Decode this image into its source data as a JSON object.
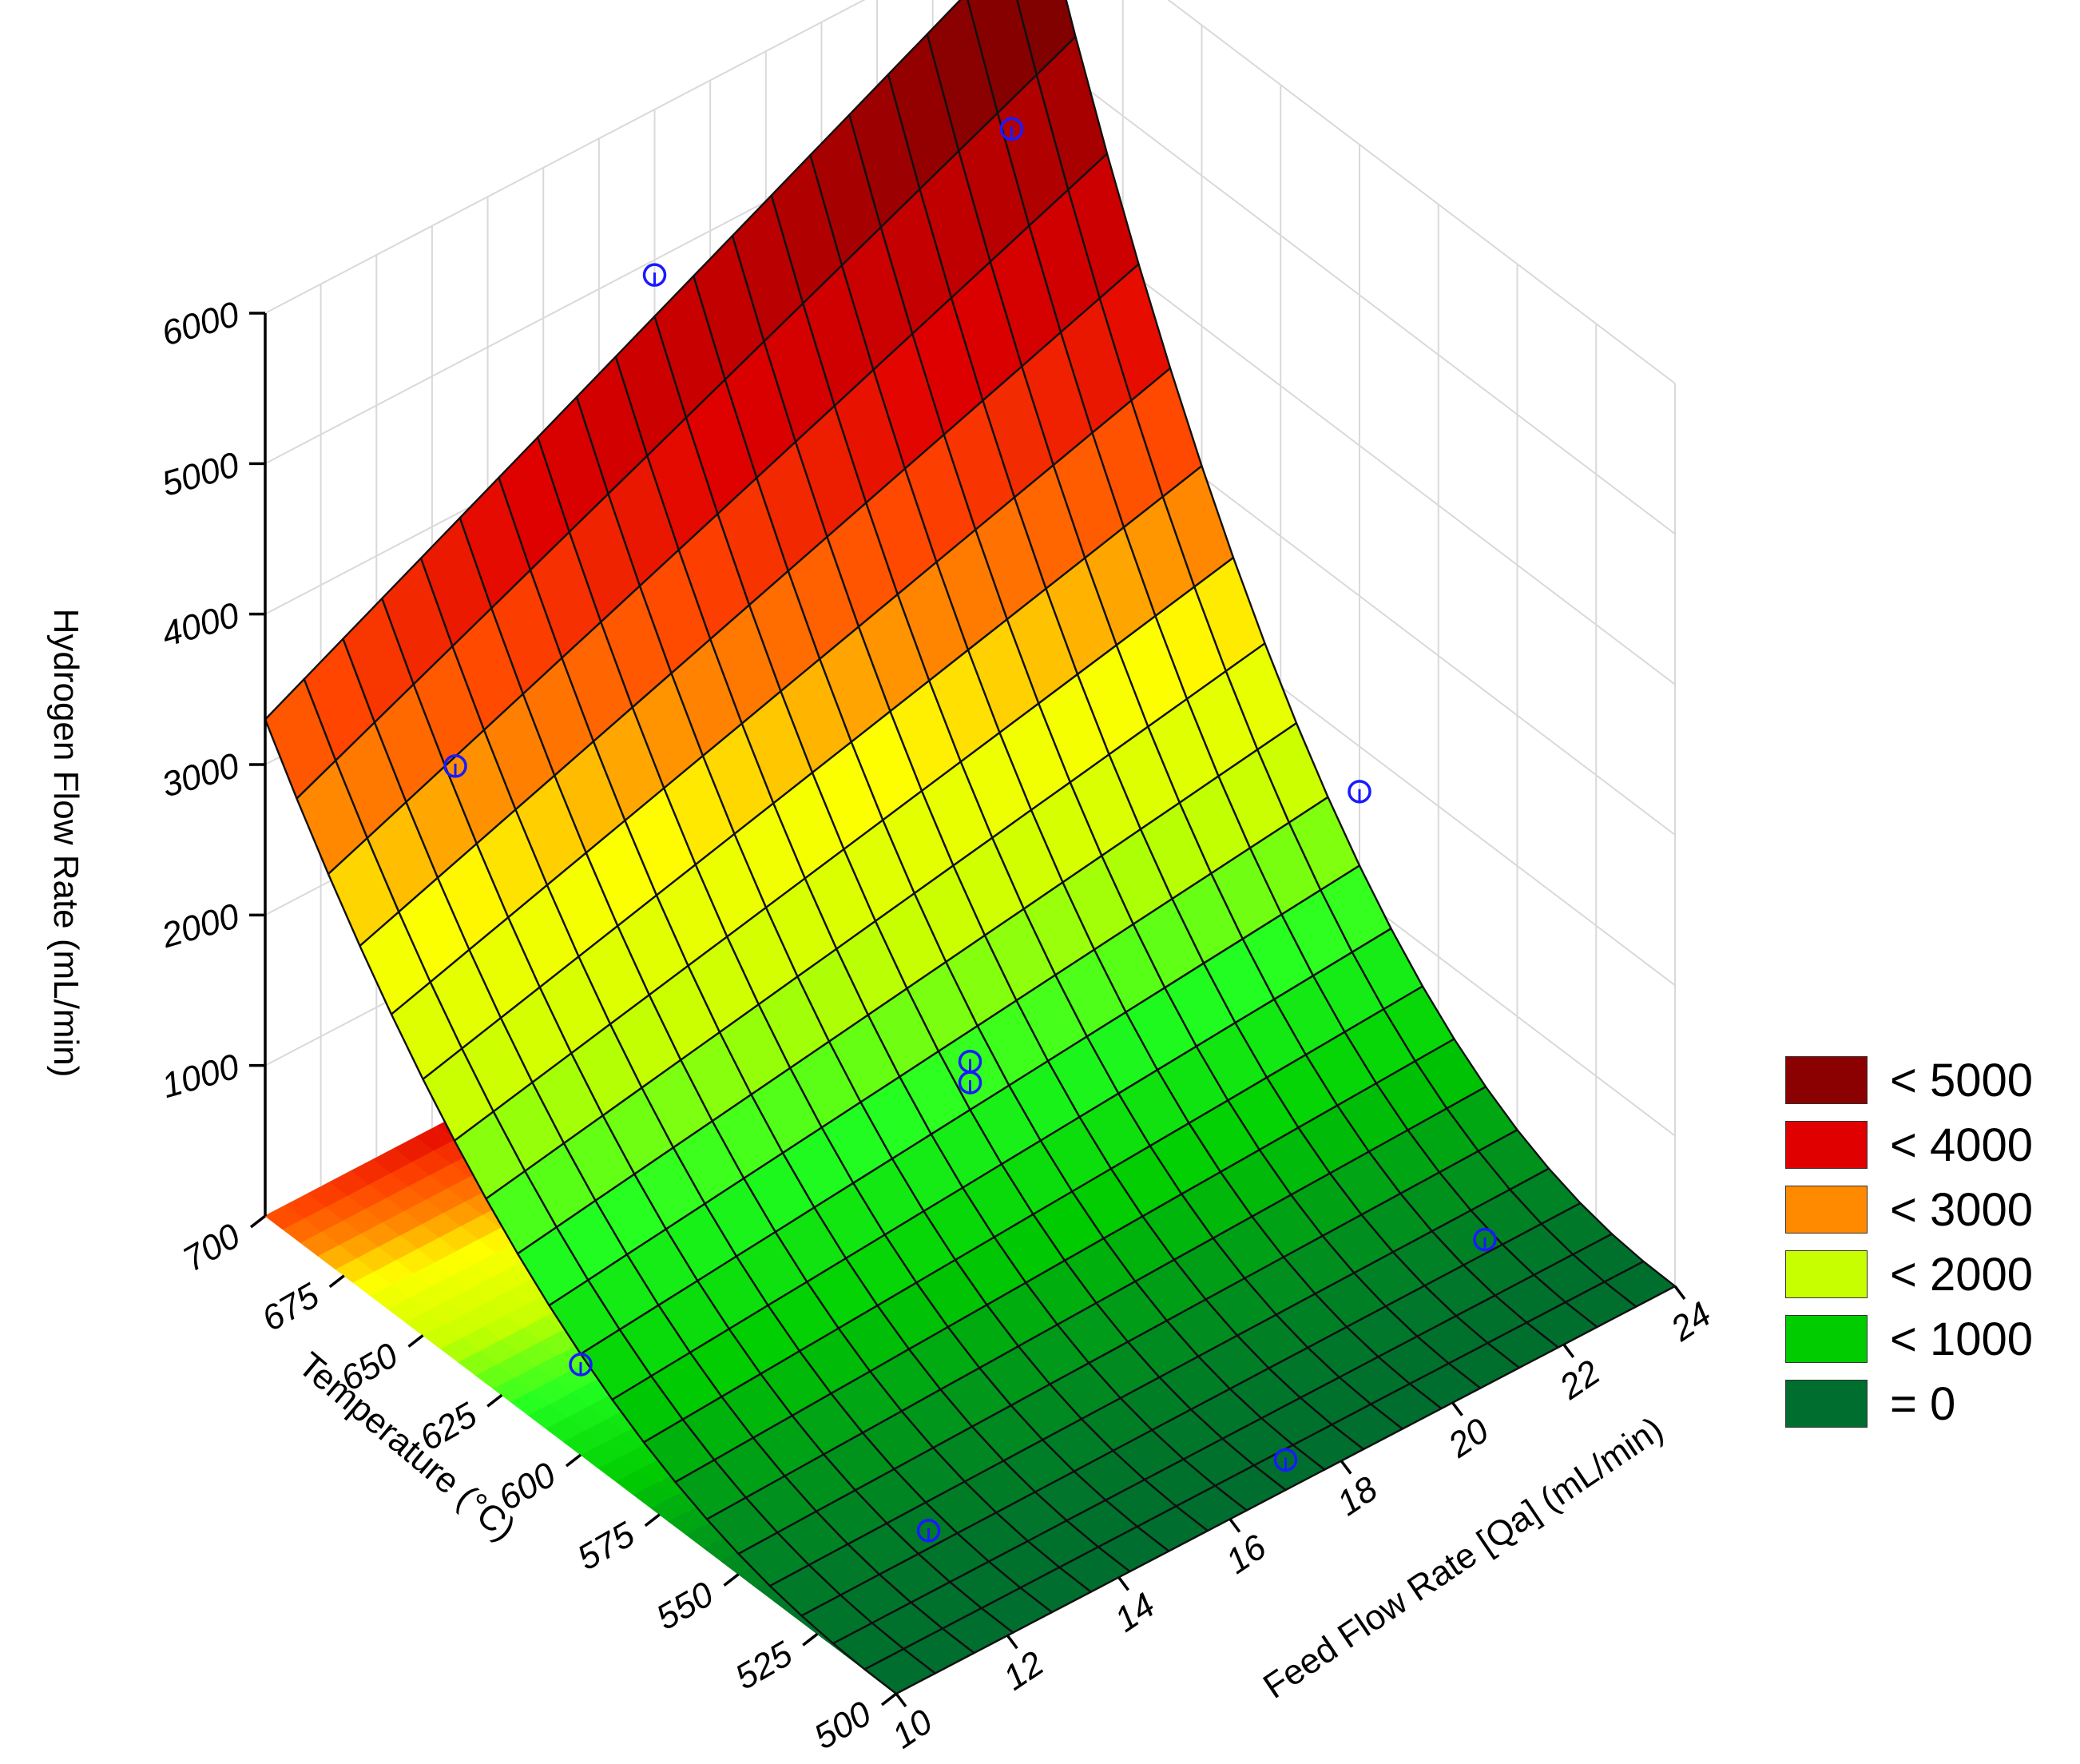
{
  "chart_data": {
    "type": "surface3d",
    "title": "",
    "x_axis": {
      "label": "Feed Flow Rate [Qa] (mL/min)",
      "range": [
        10,
        24
      ],
      "ticks": [
        "10",
        "12",
        "14",
        "16",
        "18",
        "20",
        "22",
        "24"
      ]
    },
    "y_axis": {
      "label": "Temperature (°C)",
      "range": [
        500,
        700
      ],
      "ticks": [
        "500",
        "525",
        "550",
        "575",
        "600",
        "625",
        "650",
        "675",
        "700"
      ]
    },
    "z_axis": {
      "label": "Hydrogen Flow Rate (mL/min)",
      "range": [
        0,
        6000
      ],
      "ticks": [
        "1000",
        "2000",
        "3000",
        "4000",
        "5000",
        "6000"
      ]
    },
    "surface_corners": [
      {
        "feed_flow": 10,
        "temperature": 500,
        "hydrogen_flow": 0
      },
      {
        "feed_flow": 24,
        "temperature": 500,
        "hydrogen_flow": 0
      },
      {
        "feed_flow": 10,
        "temperature": 700,
        "hydrogen_flow": 3300
      },
      {
        "feed_flow": 24,
        "temperature": 700,
        "hydrogen_flow": 5950
      }
    ],
    "observations": [
      {
        "feed_flow": 12,
        "temperature": 525,
        "hydrogen_flow": 300
      },
      {
        "feed_flow": 12,
        "temperature": 675,
        "hydrogen_flow": 3000
      },
      {
        "feed_flow": 22,
        "temperature": 525,
        "hydrogen_flow": 300
      },
      {
        "feed_flow": 22,
        "temperature": 675,
        "hydrogen_flow": 5300
      },
      {
        "feed_flow": 10,
        "temperature": 600,
        "hydrogen_flow": 600
      },
      {
        "feed_flow": 24,
        "temperature": 600,
        "hydrogen_flow": 1700
      },
      {
        "feed_flow": 17,
        "temperature": 500,
        "hydrogen_flow": 200
      },
      {
        "feed_flow": 17,
        "temperature": 700,
        "hydrogen_flow": 4900
      },
      {
        "feed_flow": 17,
        "temperature": 600,
        "hydrogen_flow": 1120
      },
      {
        "feed_flow": 17,
        "temperature": 600,
        "hydrogen_flow": 1260
      }
    ],
    "legend": {
      "position": "right",
      "items": [
        {
          "label": "< 5000",
          "color": "#8b0000"
        },
        {
          "label": "< 4000",
          "color": "#e00000"
        },
        {
          "label": "< 3000",
          "color": "#ff8a00"
        },
        {
          "label": "< 2000",
          "color": "#c8ff00"
        },
        {
          "label": "< 1000",
          "color": "#00cc00"
        },
        {
          "label": "= 0",
          "color": "#006e2e"
        }
      ]
    },
    "marker_color": "#1a1aff",
    "grid": true
  }
}
